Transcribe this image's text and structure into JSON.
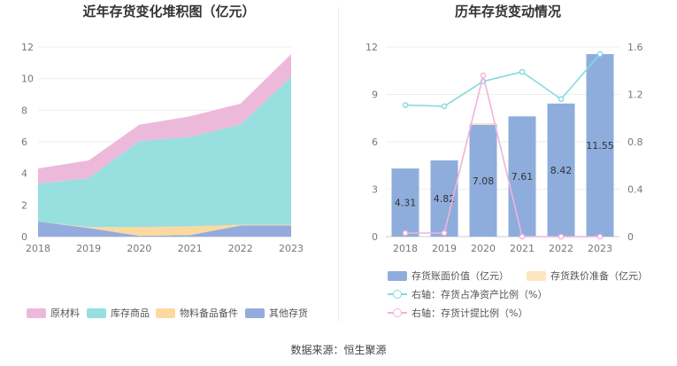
{
  "footer": {
    "source": "数据来源：恒生聚源"
  },
  "chart_data": [
    {
      "type": "area",
      "stacked": true,
      "title": "近年存货变化堆积图（亿元）",
      "categories": [
        "2018",
        "2019",
        "2020",
        "2021",
        "2022",
        "2023"
      ],
      "y_ticks": [
        "0",
        "2",
        "4",
        "6",
        "8",
        "10",
        "12"
      ],
      "ylim": [
        0,
        12
      ],
      "grid": true,
      "legend_position": "bottom",
      "series": [
        {
          "name": "其他存货",
          "color": "#93acdd",
          "values": [
            0.95,
            0.55,
            0.05,
            0.1,
            0.7,
            0.7
          ]
        },
        {
          "name": "物料备品备件",
          "color": "#fdd9a0",
          "values": [
            0.0,
            0.05,
            0.55,
            0.55,
            0.05,
            0.05
          ]
        },
        {
          "name": "库存商品",
          "color": "#98dfe0",
          "values": [
            2.4,
            3.1,
            5.45,
            5.65,
            6.35,
            9.35
          ]
        },
        {
          "name": "原材料",
          "color": "#edb9db",
          "values": [
            0.96,
            1.12,
            1.03,
            1.31,
            1.32,
            1.45
          ]
        }
      ],
      "legend_order": [
        "原材料",
        "库存商品",
        "物料备品备件",
        "其他存货"
      ]
    },
    {
      "type": "bar",
      "title": "历年存货变动情况",
      "categories": [
        "2018",
        "2019",
        "2020",
        "2021",
        "2022",
        "2023"
      ],
      "y_left_ticks": [
        "0",
        "3",
        "6",
        "9",
        "12"
      ],
      "ylim_left": [
        0,
        12
      ],
      "y_right_ticks": [
        "0",
        "0.4",
        "0.8",
        "1.2",
        "1.6"
      ],
      "ylim_right": [
        0,
        1.6
      ],
      "grid": true,
      "legend_position": "bottom",
      "bar_series": [
        {
          "name": "存货账面价值（亿元）",
          "color": "#8eaddc",
          "values": [
            4.31,
            4.82,
            7.08,
            7.61,
            8.42,
            11.55
          ],
          "labels": [
            "4.31",
            "4.82",
            "7.08",
            "7.61",
            "8.42",
            "11.55"
          ]
        },
        {
          "name": "存货跌价准备（亿元）",
          "color": "#fde5c0",
          "values": [
            0,
            0,
            0.1,
            0,
            0,
            0
          ]
        }
      ],
      "line_series": [
        {
          "name": "右轴：存货占净资产比例（%）",
          "color": "#86d8e0",
          "axis": "right",
          "values": [
            1.11,
            1.1,
            1.31,
            1.39,
            1.16,
            1.54
          ]
        },
        {
          "name": "右轴：存货计提比例（%）",
          "color": "#f0b3db",
          "axis": "right",
          "values": [
            0.03,
            0.03,
            1.36,
            0.0,
            0.0,
            0.0
          ]
        }
      ]
    }
  ]
}
